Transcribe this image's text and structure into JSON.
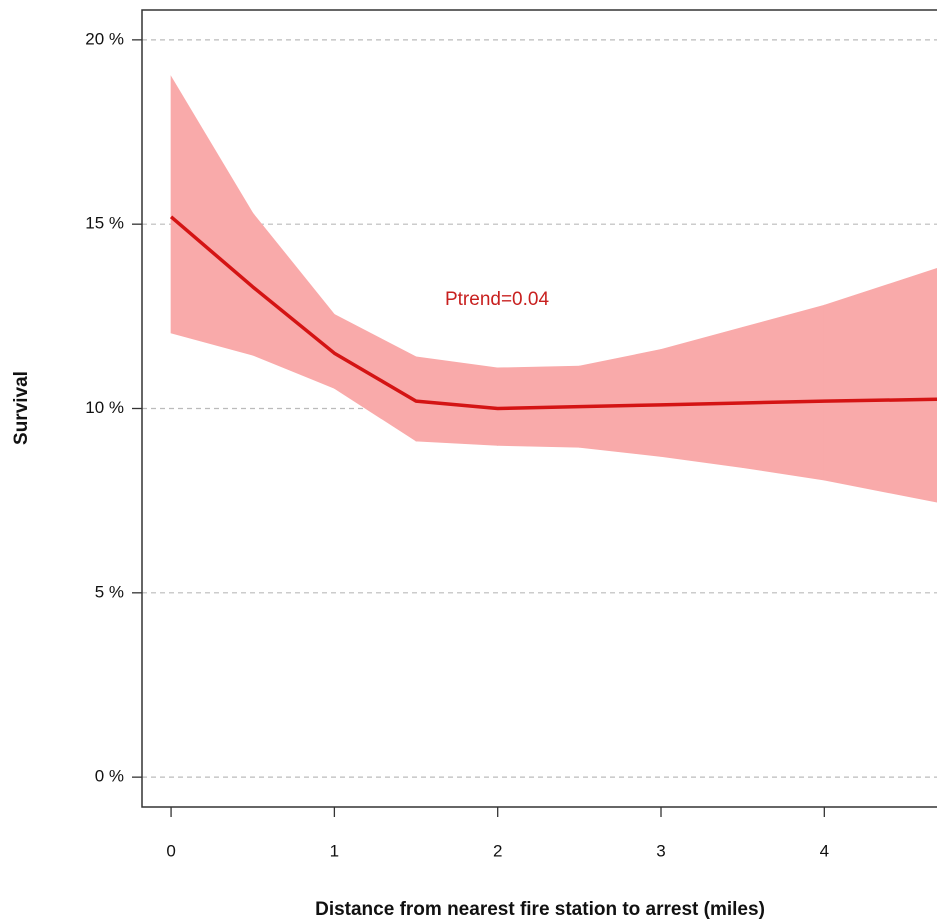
{
  "chart_data": {
    "type": "line_band",
    "annotation": "Ptrend=0.04",
    "xlabel": "Distance from nearest fire station to arrest (miles)",
    "ylabel": "Survival",
    "x": [
      0,
      0.5,
      1,
      1.5,
      2,
      2.5,
      3,
      3.5,
      4,
      4.69
    ],
    "values": [
      15.2,
      13.3,
      11.5,
      10.2,
      10.0,
      10.05,
      10.1,
      10.15,
      10.2,
      10.25
    ],
    "upper": [
      19.0,
      15.3,
      12.55,
      11.4,
      11.1,
      11.15,
      11.6,
      12.2,
      12.8,
      13.8
    ],
    "lower": [
      12.05,
      11.45,
      10.55,
      9.12,
      9.0,
      8.95,
      8.7,
      8.4,
      8.06,
      7.46
    ],
    "color": "#d41414",
    "band_color": "#f9aaaa",
    "annotation_color": "#c8201f",
    "xlim": [
      -0.178,
      4.69
    ],
    "xticks": [
      0,
      1,
      2,
      3,
      4
    ],
    "ylim": [
      -0.81,
      20.81
    ],
    "yticks": [
      {
        "value": 0,
        "label": "0 %"
      },
      {
        "value": 5,
        "label": "5 %"
      },
      {
        "value": 10,
        "label": "10 %"
      },
      {
        "value": 15,
        "label": "15 %"
      },
      {
        "value": 20,
        "label": "20 %"
      }
    ],
    "grid": true
  }
}
